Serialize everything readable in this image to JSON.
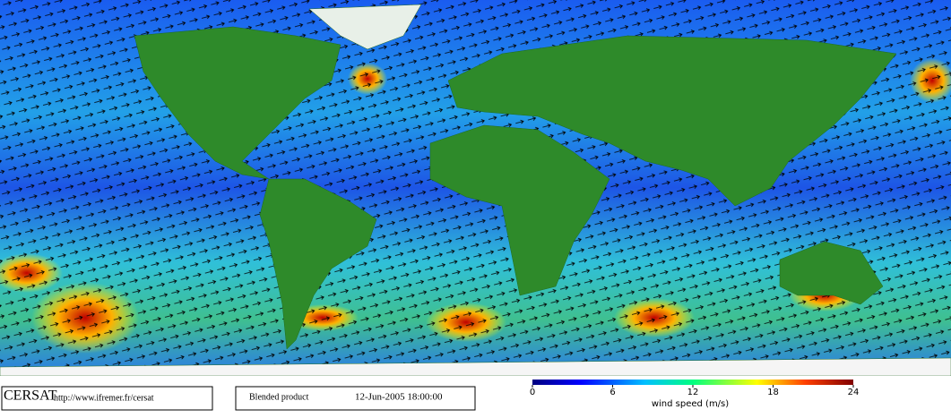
{
  "footer": {
    "logo": "CERSAT",
    "url": "http://www.ifremer.fr/cersat",
    "product": "Blended product",
    "date": "12-Jun-2005 18:00:00"
  },
  "legend": {
    "label": "wind speed (m/s)",
    "lim": [
      0,
      24
    ],
    "ticks": [
      0,
      6,
      12,
      18,
      24
    ]
  }
}
